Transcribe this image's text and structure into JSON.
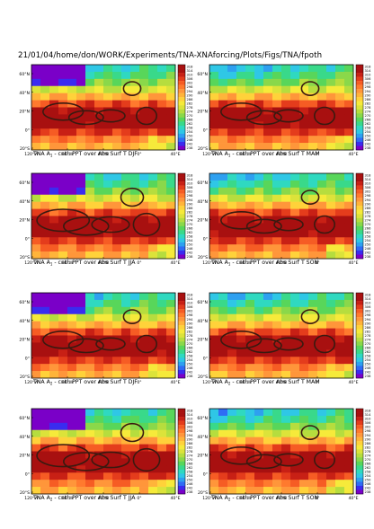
{
  "header": {
    "path": "21/01/04/home/don/WORK/Experiments/TNA-XNAforcing/Plots/Figs/TNA/fpoth"
  },
  "map_axes": {
    "lat_ticks": [
      "60°N",
      "40°N",
      "20°N",
      "0°",
      "20°S"
    ],
    "lon_ticks": [
      "120°W",
      "80°W",
      "40°W",
      "0°",
      "40°E"
    ]
  },
  "colors": {
    "scale": [
      "#7a00c8",
      "#3a2cf0",
      "#2f6cf5",
      "#2ea0f0",
      "#2fc7e6",
      "#2fd9c0",
      "#39d98a",
      "#58d65a",
      "#8ad84a",
      "#b6dd3e",
      "#dce33a",
      "#f6ea3a",
      "#ffd23a",
      "#ffb43a",
      "#ff963a",
      "#ff7a2e",
      "#f65c24",
      "#e43c1c",
      "#c82015",
      "#a81010"
    ],
    "contour": "#3a1a10"
  },
  "chart_data": [
    {
      "type": "heatmap",
      "panel_label": "TNA A",
      "panel_sub": "1",
      "caption_rest": " - cntl: PPT over Abs Surf T",
      "season": "DJF",
      "colorbar": [
        "318",
        "314",
        "310",
        "306",
        "302",
        "298",
        "294",
        "290",
        "286",
        "282",
        "278",
        "274",
        "270",
        "266",
        "262",
        "258",
        "254",
        "250",
        "246",
        "242",
        "238"
      ]
    },
    {
      "type": "heatmap",
      "panel_label": "TNA A",
      "panel_sub": "1",
      "caption_rest": " - cntl: PPT over Abs Surf T",
      "season": "MAM",
      "colorbar": [
        "318",
        "314",
        "310",
        "306",
        "302",
        "298",
        "294",
        "290",
        "286",
        "282",
        "278",
        "274",
        "270",
        "266",
        "262",
        "258",
        "254",
        "250",
        "246",
        "242",
        "238"
      ]
    },
    {
      "type": "heatmap",
      "panel_label": "TNA A",
      "panel_sub": "1",
      "caption_rest": " - cntl: PPT over Abs Surf T",
      "season": "JJA",
      "colorbar": [
        "318",
        "314",
        "310",
        "306",
        "302",
        "298",
        "294",
        "290",
        "286",
        "282",
        "278",
        "274",
        "270",
        "266",
        "262",
        "258",
        "254",
        "250",
        "246",
        "242",
        "238"
      ]
    },
    {
      "type": "heatmap",
      "panel_label": "TNA A",
      "panel_sub": "1",
      "caption_rest": " - cntl: PPT over Abs Surf T",
      "season": "SON",
      "colorbar": [
        "318",
        "314",
        "310",
        "306",
        "302",
        "298",
        "294",
        "290",
        "286",
        "282",
        "278",
        "274",
        "270",
        "266",
        "262",
        "258",
        "254",
        "250",
        "246",
        "242",
        "238"
      ]
    },
    {
      "type": "heatmap",
      "panel_label": "TNA A",
      "panel_sub": "2",
      "caption_rest": " - cntl: PPT over Abs Surf T",
      "season": "DJF",
      "colorbar": [
        "318",
        "314",
        "310",
        "306",
        "302",
        "298",
        "294",
        "290",
        "286",
        "282",
        "278",
        "274",
        "270",
        "266",
        "262",
        "258",
        "254",
        "250",
        "246",
        "242",
        "238"
      ]
    },
    {
      "type": "heatmap",
      "panel_label": "TNA A",
      "panel_sub": "2",
      "caption_rest": " - cntl: PPT over Abs Surf T",
      "season": "MAM",
      "colorbar": [
        "318",
        "314",
        "310",
        "306",
        "302",
        "298",
        "294",
        "290",
        "286",
        "282",
        "278",
        "274",
        "270",
        "266",
        "262",
        "258",
        "254",
        "250",
        "246",
        "242",
        "238"
      ]
    },
    {
      "type": "heatmap",
      "panel_label": "TNA A",
      "panel_sub": "2",
      "caption_rest": " - cntl: PPT over Abs Surf T",
      "season": "JJA",
      "colorbar": [
        "318",
        "314",
        "310",
        "306",
        "302",
        "298",
        "294",
        "290",
        "286",
        "282",
        "278",
        "274",
        "270",
        "266",
        "262",
        "258",
        "254",
        "250",
        "246",
        "242",
        "238"
      ]
    },
    {
      "type": "heatmap",
      "panel_label": "TNA A",
      "panel_sub": "2",
      "caption_rest": " - cntl: PPT over Abs Surf T",
      "season": "SON",
      "colorbar": [
        "318",
        "314",
        "310",
        "306",
        "302",
        "298",
        "294",
        "290",
        "286",
        "282",
        "278",
        "274",
        "270",
        "266",
        "262",
        "258",
        "254",
        "250",
        "246",
        "242",
        "238"
      ]
    }
  ]
}
